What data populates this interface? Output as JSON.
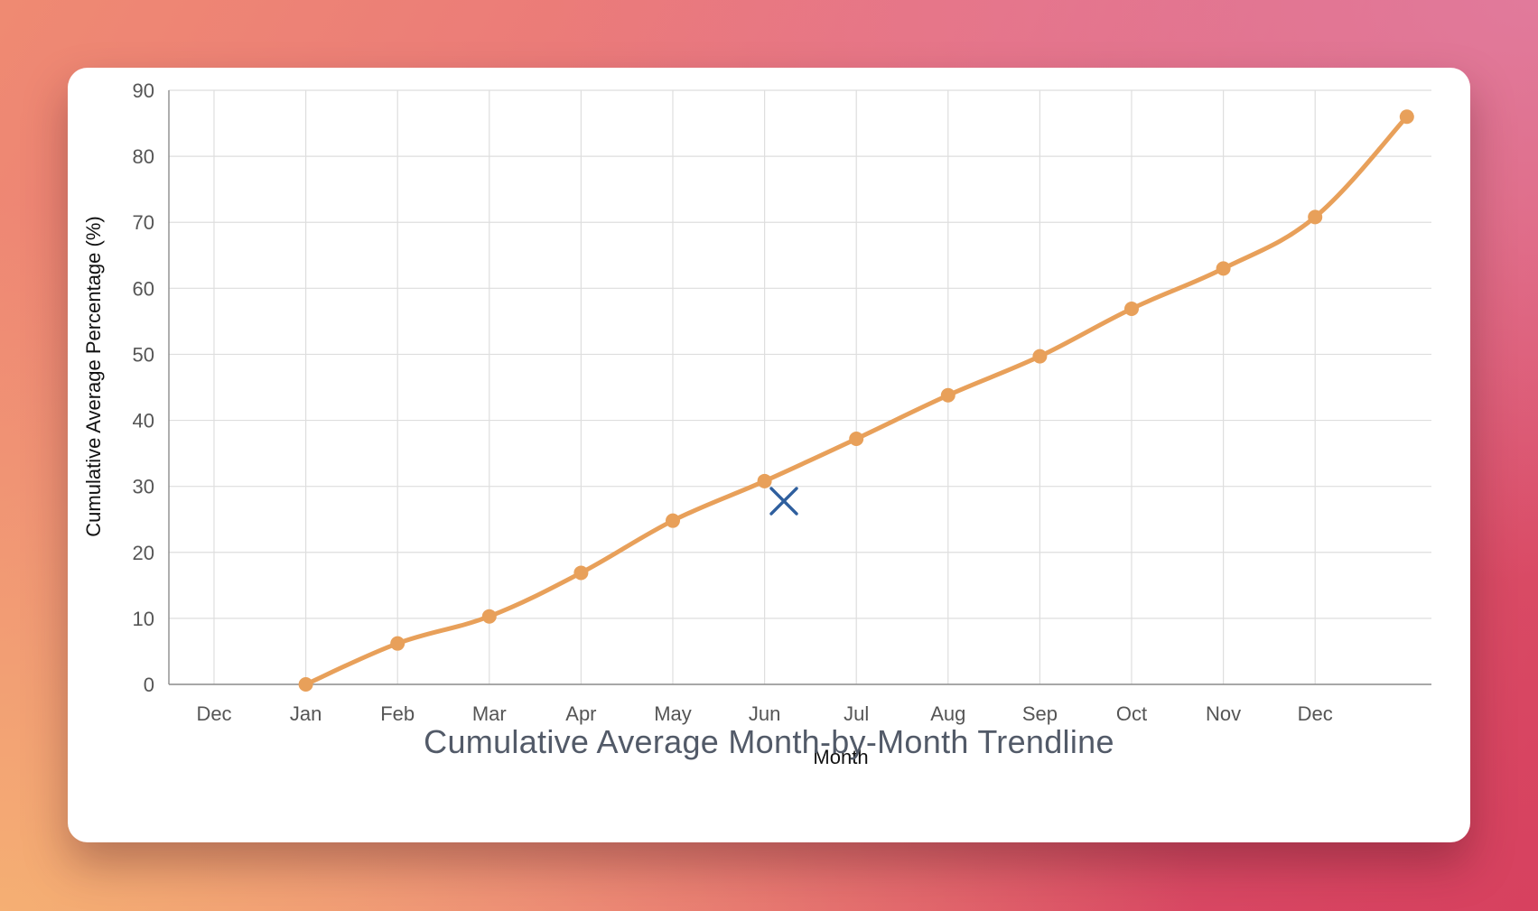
{
  "colors": {
    "line": "#e8a05a",
    "point": "#e8a05a",
    "cursor": "#2f5f9e",
    "title": "#525a68"
  },
  "cursor_icon": "close-x-cursor-icon",
  "chart_data": {
    "type": "line",
    "title": "Cumulative Average Month-by-Month Trendline",
    "xlabel": "Month",
    "ylabel": "Cumulative Average Percentage (%)",
    "categories": [
      "Dec",
      "Jan",
      "Feb",
      "Mar",
      "Apr",
      "May",
      "Jun",
      "Jul",
      "Aug",
      "Sep",
      "Oct",
      "Nov",
      "Dec"
    ],
    "ylim": [
      0,
      90
    ],
    "yticks": [
      0,
      10,
      20,
      30,
      40,
      50,
      60,
      70,
      80,
      90
    ],
    "grid": true,
    "legend": "none",
    "series": [
      {
        "x_index": [
          1,
          2,
          3,
          4,
          5,
          6,
          7,
          8,
          9,
          10,
          11,
          12,
          13
        ],
        "values": [
          0,
          6.2,
          10.3,
          16.9,
          24.8,
          30.8,
          37.2,
          43.8,
          49.7,
          56.9,
          63.0,
          70.8,
          86.0
        ]
      }
    ]
  }
}
